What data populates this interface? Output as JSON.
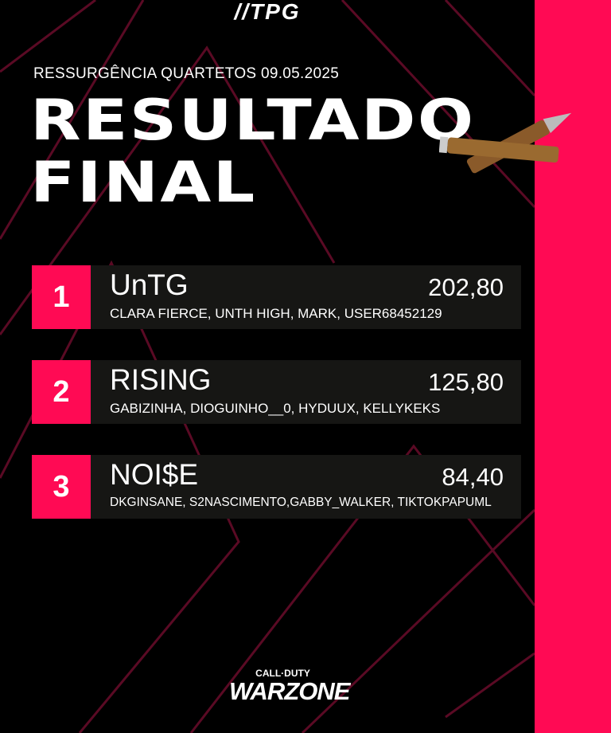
{
  "header": {
    "logo": "//TPG"
  },
  "event": {
    "subtitle": "RESSURGÊNCIA QUARTETOS 09.05.2025",
    "title_line1": "RESULTADO",
    "title_line2": "FINAL"
  },
  "colors": {
    "accent": "#ff0a54",
    "row_bg": "#161614",
    "background": "#000000"
  },
  "results": [
    {
      "rank": "1",
      "team": "UnTG",
      "score": "202,80",
      "players": "CLARA FIERCE, UNTH HIGH, MARK, USER68452129"
    },
    {
      "rank": "2",
      "team": "RISING",
      "score": "125,80",
      "players": "GABIZINHA, DIOGUINHO__0, HYDUUX, KELLYKEKS"
    },
    {
      "rank": "3",
      "team": "NOI$E",
      "score": "84,40",
      "players": "DKGINSANE, S2NASCIMENTO,GABBY_WALKER, TIKTOKPAPUML"
    }
  ],
  "footer": {
    "logo_top": "CALL·DUTY",
    "logo_bottom": "WARZONE"
  }
}
